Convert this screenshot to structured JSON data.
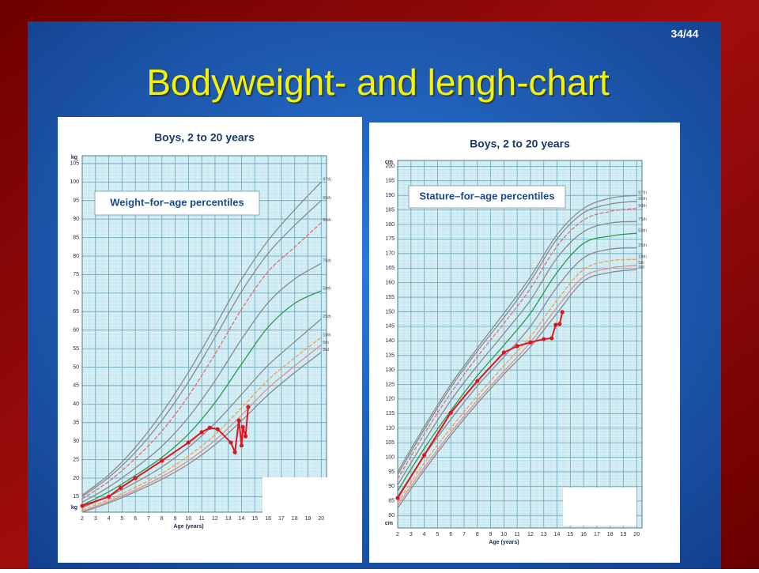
{
  "slide_number": "34/44",
  "title": "Bodyweight- and lengh-chart",
  "chart_data": [
    {
      "type": "line",
      "title": "Boys, 2 to 20 years",
      "subtitle": "Weight–for–age percentiles",
      "x_label": "Age (years)",
      "y_label": "kg",
      "x": [
        2,
        4,
        6,
        8,
        10,
        12,
        14,
        16,
        18,
        20
      ],
      "xlim": [
        2,
        20.4
      ],
      "ylim": [
        10.8,
        107.1
      ],
      "xticks": [
        2,
        3,
        4,
        5,
        6,
        7,
        8,
        9,
        10,
        11,
        12,
        13,
        14,
        15,
        16,
        17,
        18,
        19,
        20
      ],
      "yticks": [
        15,
        20,
        25,
        30,
        35,
        40,
        45,
        50,
        55,
        60,
        65,
        70,
        75,
        80,
        85,
        90,
        95,
        100,
        105
      ],
      "grid": true,
      "series": [
        {
          "name": "97th",
          "color": "#8a8a8a",
          "values": [
            15.4,
            20.9,
            28.3,
            37.6,
            48.6,
            61.0,
            73.7,
            84.2,
            92.5,
            100
          ]
        },
        {
          "name": "95th",
          "color": "#8a8a8a",
          "values": [
            15.0,
            20.2,
            27.0,
            35.6,
            46.0,
            58.0,
            70.4,
            80.7,
            88.3,
            95
          ]
        },
        {
          "name": "90th",
          "color": "#e07070",
          "dashed": true,
          "values": [
            14.4,
            19.1,
            25.3,
            32.7,
            42.2,
            53.5,
            65.6,
            75.8,
            82.4,
            89
          ]
        },
        {
          "name": "75th",
          "color": "#8a8a8a",
          "values": [
            13.5,
            17.6,
            22.7,
            28.6,
            36.4,
            46.3,
            57.5,
            67.4,
            73.8,
            78
          ]
        },
        {
          "name": "50th",
          "color": "#2a9a4a",
          "values": [
            12.7,
            16.3,
            20.7,
            25.6,
            31.9,
            40.4,
            50.8,
            60.8,
            67.2,
            70.6
          ]
        },
        {
          "name": "25th",
          "color": "#8a8a8a",
          "values": [
            12.0,
            15.1,
            18.8,
            23.0,
            28.3,
            34.8,
            42.6,
            50.5,
            56.8,
            63
          ]
        },
        {
          "name": "10th",
          "color": "#f0a050",
          "dashed": true,
          "values": [
            11.4,
            14.2,
            17.5,
            21.3,
            26.0,
            31.7,
            39.0,
            46.5,
            52.5,
            58
          ]
        },
        {
          "name": "5th",
          "color": "#e09090",
          "values": [
            11.0,
            13.7,
            16.8,
            20.4,
            24.7,
            30.2,
            37.0,
            44.3,
            50.3,
            56
          ]
        },
        {
          "name": "3rd",
          "color": "#8a8a8a",
          "values": [
            10.8,
            13.3,
            16.3,
            19.7,
            23.8,
            29.0,
            35.5,
            42.5,
            48.5,
            54
          ]
        },
        {
          "color": "#e0141e",
          "markers": true,
          "x": [
            2,
            4,
            4.9,
            6,
            8,
            10,
            11,
            11.6,
            12.2,
            13.2,
            13.5,
            13.8,
            14,
            14.1,
            14.3,
            14.5
          ],
          "values": [
            12.5,
            15,
            17.4,
            20,
            24.7,
            29.6,
            32.4,
            33.6,
            33.2,
            29.6,
            27,
            35.6,
            28.8,
            33.8,
            31.3,
            39.2
          ]
        }
      ]
    },
    {
      "type": "line",
      "title": "Boys, 2 to 20 years",
      "subtitle": "Stature–for–age percentiles",
      "x_label": "Age (years)",
      "y_label": "cm",
      "x": [
        2,
        4,
        6,
        8,
        10,
        12,
        14,
        16,
        18,
        20
      ],
      "xlim": [
        2,
        20.4
      ],
      "ylim": [
        75.7,
        202
      ],
      "xticks": [
        2,
        3,
        4,
        5,
        6,
        7,
        8,
        9,
        10,
        11,
        12,
        13,
        14,
        15,
        16,
        17,
        18,
        19,
        20
      ],
      "yticks": [
        80,
        85,
        90,
        95,
        100,
        105,
        110,
        115,
        120,
        125,
        130,
        135,
        140,
        145,
        150,
        155,
        160,
        165,
        170,
        175,
        180,
        185,
        190,
        195,
        200
      ],
      "grid": true,
      "series": [
        {
          "name": "97th",
          "color": "#8a8a8a",
          "values": [
            95,
            110.5,
            125,
            137.5,
            149.5,
            162,
            176.5,
            185.5,
            189,
            190
          ]
        },
        {
          "name": "95th",
          "color": "#8a8a8a",
          "values": [
            94,
            109.5,
            124,
            136.5,
            148,
            160.5,
            175,
            184,
            187,
            188
          ]
        },
        {
          "name": "90th",
          "color": "#e07070",
          "dashed": true,
          "values": [
            92.5,
            108,
            122,
            134.5,
            146,
            158,
            172.5,
            181.5,
            184.5,
            185.5
          ]
        },
        {
          "name": "75th",
          "color": "#8a8a8a",
          "values": [
            90.5,
            105.5,
            119.5,
            131.5,
            142.5,
            154,
            168.5,
            177.5,
            180.5,
            181
          ]
        },
        {
          "name": "50th",
          "color": "#2a9a4a",
          "values": [
            88.5,
            103,
            116,
            128,
            138.5,
            149.5,
            163.5,
            173.5,
            176,
            177
          ]
        },
        {
          "name": "25th",
          "color": "#8a8a8a",
          "values": [
            86.5,
            100.5,
            113,
            124.5,
            134.5,
            145,
            158.5,
            168.5,
            171.5,
            172
          ]
        },
        {
          "name": "10th",
          "color": "#f0a050",
          "dashed": true,
          "values": [
            84.5,
            98,
            110,
            121,
            131.5,
            141.5,
            154,
            164.5,
            167.5,
            168
          ]
        },
        {
          "name": "5th",
          "color": "#e09090",
          "values": [
            83.5,
            96.5,
            108.5,
            119.5,
            129.5,
            139.5,
            151.5,
            162,
            165,
            166
          ]
        },
        {
          "name": "3rd",
          "color": "#8a8a8a",
          "values": [
            82.5,
            95.5,
            107.5,
            118.5,
            128.5,
            138,
            149.5,
            160.5,
            163.5,
            164.5
          ]
        },
        {
          "color": "#e0141e",
          "markers": true,
          "x": [
            2,
            4,
            6,
            8,
            10,
            11,
            12,
            13,
            13.6,
            13.9,
            14.2,
            14.4
          ],
          "values": [
            86,
            100.7,
            115.3,
            126.2,
            136,
            138.2,
            139.5,
            140.6,
            140.9,
            145.5,
            145.8,
            149.9
          ]
        }
      ]
    }
  ]
}
